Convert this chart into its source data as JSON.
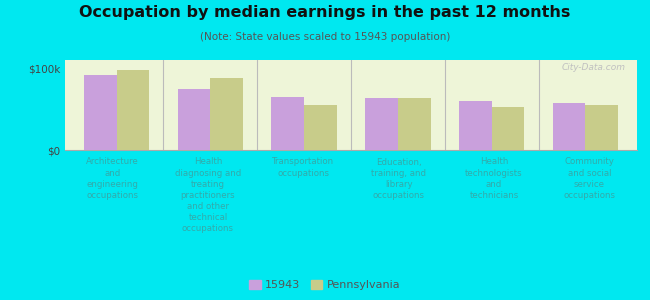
{
  "title": "Occupation by median earnings in the past 12 months",
  "subtitle": "(Note: State values scaled to 15943 population)",
  "categories": [
    "Architecture\nand\nengineering\noccupations",
    "Health\ndiagnosing and\ntreating\npractitioners\nand other\ntechnical\noccupations",
    "Transportation\noccupations",
    "Education,\ntraining, and\nlibrary\noccupations",
    "Health\ntechnologists\nand\ntechnicians",
    "Community\nand social\nservice\noccupations"
  ],
  "values_15943": [
    92000,
    75000,
    65000,
    63000,
    60000,
    58000
  ],
  "values_pennsylvania": [
    98000,
    88000,
    55000,
    63000,
    53000,
    55000
  ],
  "color_15943": "#c9a0dc",
  "color_pennsylvania": "#c8cc8a",
  "ylim": [
    0,
    110000
  ],
  "ytick_labels": [
    "$0",
    "$100k"
  ],
  "chart_bg": "#eef5d8",
  "outer_bg": "#00e8f0",
  "label_color": "#33aaaa",
  "legend_label_1": "15943",
  "legend_label_2": "Pennsylvania",
  "watermark": "City-Data.com",
  "title_color": "#111111",
  "subtitle_color": "#555555"
}
